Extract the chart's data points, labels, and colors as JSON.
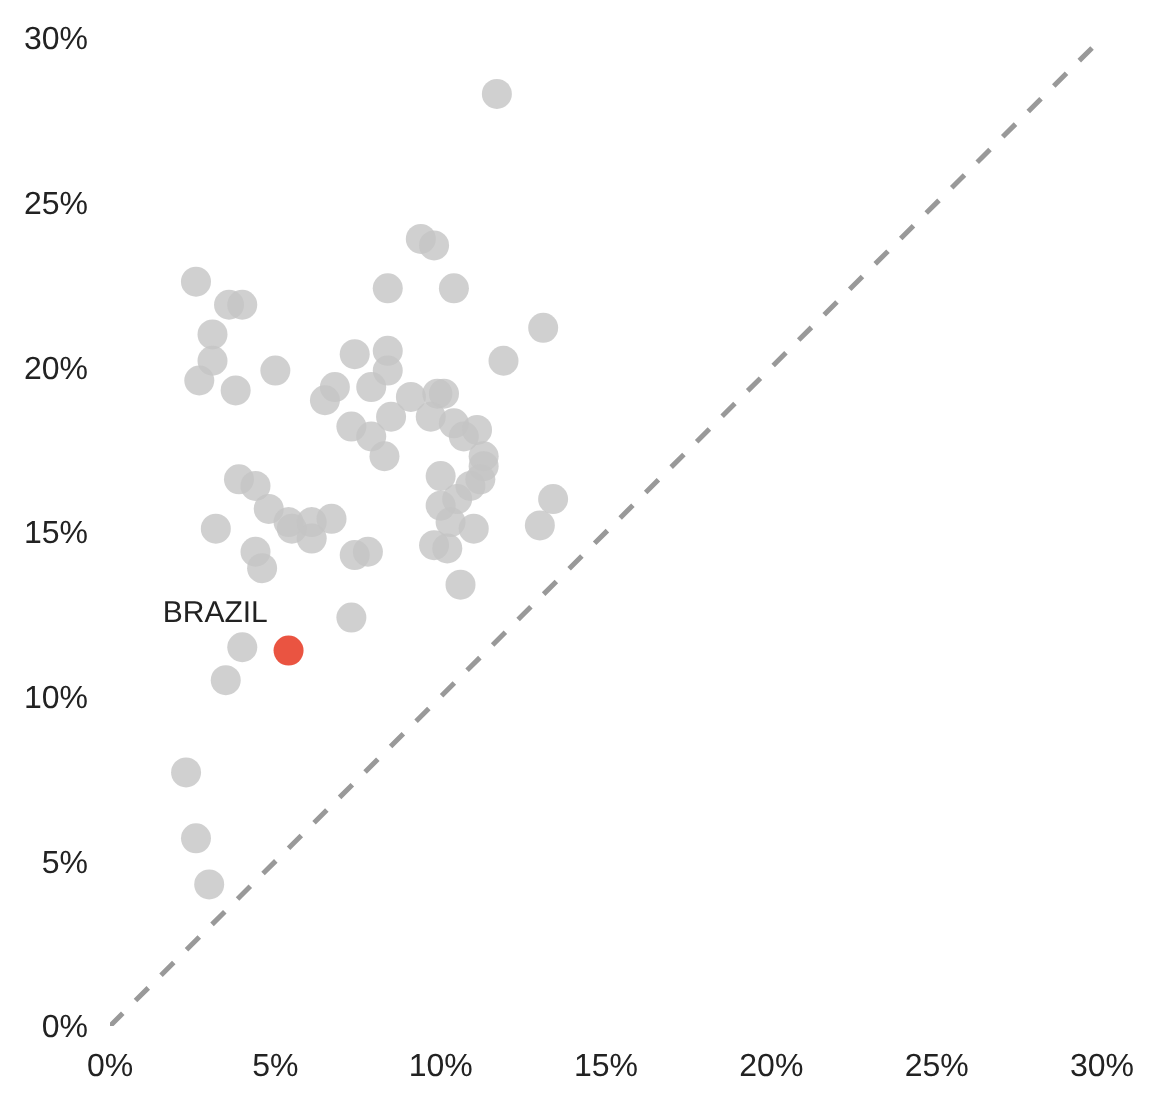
{
  "chart_data": {
    "type": "scatter",
    "xlim": [
      0,
      30
    ],
    "ylim": [
      0,
      30
    ],
    "xticks": [
      {
        "value": 0,
        "label": "0%"
      },
      {
        "value": 5,
        "label": "5%"
      },
      {
        "value": 10,
        "label": "10%"
      },
      {
        "value": 15,
        "label": "15%"
      },
      {
        "value": 20,
        "label": "20%"
      },
      {
        "value": 25,
        "label": "25%"
      },
      {
        "value": 30,
        "label": "30%"
      }
    ],
    "yticks": [
      {
        "value": 0,
        "label": "0%"
      },
      {
        "value": 5,
        "label": "5%"
      },
      {
        "value": 10,
        "label": "10%"
      },
      {
        "value": 15,
        "label": "15%"
      },
      {
        "value": 20,
        "label": "20%"
      },
      {
        "value": 25,
        "label": "25%"
      },
      {
        "value": 30,
        "label": "30%"
      }
    ],
    "grid": false,
    "legend": false,
    "marker": "circle",
    "series": [
      {
        "type": "line",
        "color": "#999999",
        "line_style": "dashed",
        "marker": "none",
        "x": [
          0,
          30
        ],
        "values": [
          0,
          30
        ]
      },
      {
        "color": "#c4c4c4",
        "x": [
          11.7,
          2.6,
          3.6,
          4.0,
          3.1,
          3.1,
          2.7,
          3.8,
          5.0,
          9.4,
          9.8,
          8.4,
          10.4,
          13.1,
          11.9,
          7.4,
          8.4,
          8.4,
          6.8,
          6.5,
          7.9,
          9.1,
          9.9,
          10.1,
          7.3,
          7.9,
          8.5,
          9.7,
          10.4,
          10.7,
          11.1,
          8.3,
          11.3,
          11.3,
          10.0,
          3.9,
          4.4,
          4.8,
          3.2,
          5.4,
          5.5,
          6.1,
          6.1,
          6.7,
          4.4,
          4.6,
          7.4,
          7.8,
          10.0,
          10.3,
          10.5,
          10.9,
          11.2,
          13.4,
          13.0,
          11.0,
          9.8,
          10.2,
          10.6,
          7.3,
          4.0,
          3.5,
          2.3,
          2.6,
          3.0
        ],
        "values": [
          28.3,
          22.6,
          21.9,
          21.9,
          21.0,
          20.2,
          19.6,
          19.3,
          19.9,
          23.9,
          23.7,
          22.4,
          22.4,
          21.2,
          20.2,
          20.4,
          20.5,
          19.9,
          19.4,
          19.0,
          19.4,
          19.1,
          19.2,
          19.2,
          18.2,
          17.9,
          18.5,
          18.5,
          18.3,
          17.9,
          18.1,
          17.3,
          17.3,
          17.0,
          16.7,
          16.6,
          16.4,
          15.7,
          15.1,
          15.3,
          15.1,
          15.3,
          14.8,
          15.4,
          14.4,
          13.9,
          14.3,
          14.4,
          15.8,
          15.3,
          16.0,
          16.4,
          16.6,
          16.0,
          15.2,
          15.1,
          14.6,
          14.5,
          13.4,
          12.4,
          11.5,
          10.5,
          7.7,
          5.7,
          4.3
        ]
      },
      {
        "name": "BRAZIL",
        "color": "#e8412c",
        "x": [
          5.4
        ],
        "values": [
          11.4
        ]
      }
    ]
  }
}
